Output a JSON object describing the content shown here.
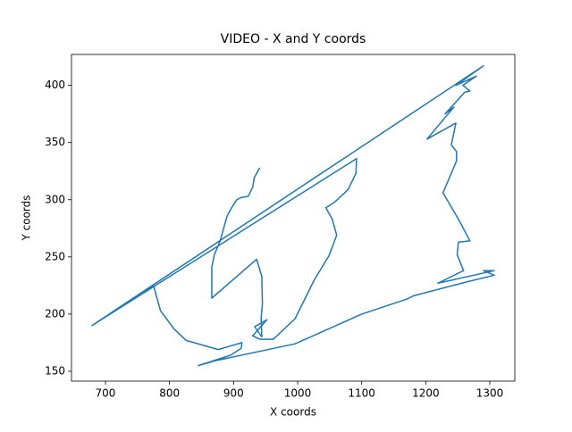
{
  "chart_data": {
    "type": "line",
    "title": "VIDEO - X and Y coords",
    "x_label": "X coords",
    "y_label": "Y coords",
    "color": "#1f77b4",
    "x": [
      941,
      932,
      930,
      923,
      912,
      905,
      897,
      890,
      879,
      870,
      866,
      866,
      866,
      936,
      944,
      945,
      943,
      944,
      933,
      952,
      930,
      941,
      962,
      996,
      1026,
      1049,
      1061,
      1054,
      1044,
      1058,
      1079,
      1091,
      1092,
      679,
      775,
      786,
      807,
      826,
      876,
      913,
      912,
      895,
      845,
      870,
      996,
      1100,
      1170,
      1181,
      1263,
      1307,
      1290,
      1307,
      1219,
      1259,
      1249,
      1251,
      1269,
      1251,
      1227,
      1248,
      1248,
      1240,
      1247,
      1202,
      1244,
      1230,
      1261,
      1269,
      1258,
      1279,
      1247,
      1290,
      679
    ],
    "values": [
      328,
      319,
      311,
      303,
      302,
      300,
      293,
      286,
      264,
      252,
      241,
      225,
      214,
      248,
      233,
      209,
      197,
      180,
      189,
      195,
      181,
      178,
      178,
      196,
      230,
      251,
      269,
      283,
      293,
      298,
      309,
      323,
      336,
      190,
      225,
      203,
      187,
      177,
      169,
      175,
      170,
      164,
      155,
      159,
      174,
      200,
      213,
      216,
      228,
      234,
      238,
      238,
      227,
      238,
      252,
      263,
      264,
      283,
      306,
      334,
      342,
      348,
      367,
      353,
      381,
      375,
      394,
      395,
      400,
      408,
      400,
      417,
      190
    ],
    "xlim": [
      647,
      1339
    ],
    "ylim": [
      141.4,
      427
    ],
    "xticks": [
      700,
      800,
      900,
      1000,
      1100,
      1200,
      1300
    ],
    "yticks": [
      150,
      200,
      250,
      300,
      350,
      400
    ]
  }
}
